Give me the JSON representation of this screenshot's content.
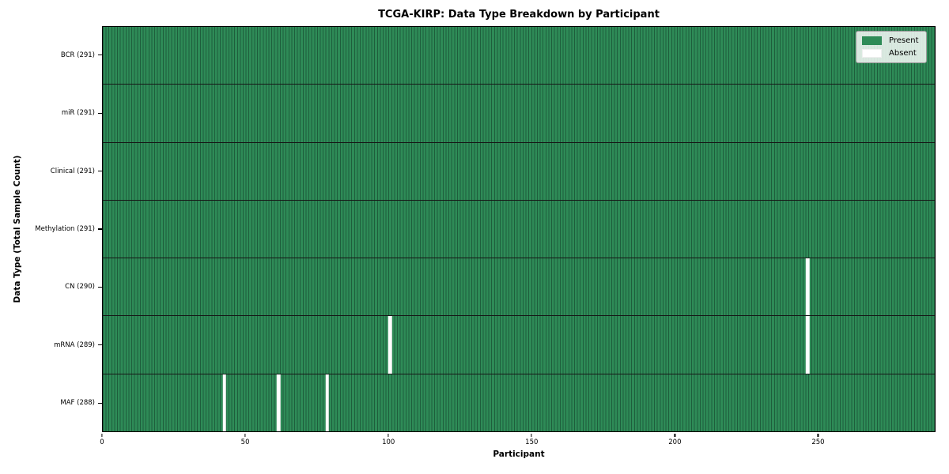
{
  "chart_data": {
    "type": "heatmap",
    "title": "TCGA-KIRP: Data Type Breakdown by Participant",
    "xlabel": "Participant",
    "ylabel": "Data Type (Total Sample Count)",
    "x_ticks": [
      0,
      50,
      100,
      150,
      200,
      250
    ],
    "xlim": [
      0,
      291
    ],
    "total_participants": 291,
    "legend_position": "upper right",
    "legend": [
      {
        "label": "Present",
        "color": "#2e8b57"
      },
      {
        "label": "Absent",
        "color": "#ffffff"
      }
    ],
    "colors": {
      "present": "#2e8b57",
      "present_edge": "#1e5e3c",
      "absent": "#ffffff"
    },
    "rows": [
      {
        "label": "BCR (291)",
        "data_type": "BCR",
        "present_count": 291,
        "absent_participants": []
      },
      {
        "label": "miR (291)",
        "data_type": "miR",
        "present_count": 291,
        "absent_participants": []
      },
      {
        "label": "Clinical (291)",
        "data_type": "Clinical",
        "present_count": 291,
        "absent_participants": []
      },
      {
        "label": "Methylation (291)",
        "data_type": "Methylation",
        "present_count": 291,
        "absent_participants": []
      },
      {
        "label": "CN (290)",
        "data_type": "CN",
        "present_count": 290,
        "absent_participants": [
          246
        ]
      },
      {
        "label": "mRNA (289)",
        "data_type": "mRNA",
        "present_count": 289,
        "absent_participants": [
          100,
          246
        ]
      },
      {
        "label": "MAF (288)",
        "data_type": "MAF",
        "present_count": 288,
        "absent_participants": [
          42,
          61,
          78
        ]
      }
    ]
  }
}
